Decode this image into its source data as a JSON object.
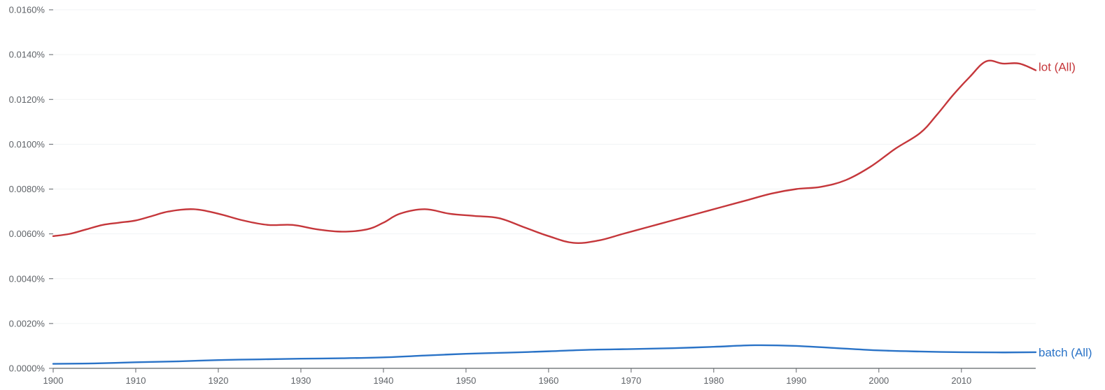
{
  "chart_data": {
    "type": "line",
    "title": "",
    "xlabel": "",
    "ylabel": "",
    "xlim": [
      1900,
      2019
    ],
    "ylim": [
      0,
      0.016
    ],
    "x_ticks": [
      1900,
      1910,
      1920,
      1930,
      1940,
      1950,
      1960,
      1970,
      1980,
      1990,
      2000,
      2010
    ],
    "y_ticks": [
      0,
      0.002,
      0.004,
      0.006,
      0.008,
      0.01,
      0.012,
      0.014,
      0.016
    ],
    "y_tick_labels": [
      "0.0000%",
      "0.0020%",
      "0.0040%",
      "0.0060%",
      "0.0080%",
      "0.0100%",
      "0.0120%",
      "0.0140%",
      "0.0160%"
    ],
    "x_tick_labels": [
      "1900",
      "1910",
      "1920",
      "1930",
      "1940",
      "1950",
      "1960",
      "1970",
      "1980",
      "1990",
      "2000",
      "2010"
    ],
    "grid": true,
    "legend": "inline-right",
    "series": [
      {
        "name": "lot (All)",
        "color": "#c5373b",
        "points": [
          [
            1900,
            0.0059
          ],
          [
            1902,
            0.006
          ],
          [
            1904,
            0.0062
          ],
          [
            1906,
            0.0064
          ],
          [
            1908,
            0.0065
          ],
          [
            1910,
            0.0066
          ],
          [
            1912,
            0.0068
          ],
          [
            1914,
            0.007
          ],
          [
            1917,
            0.0071
          ],
          [
            1920,
            0.0069
          ],
          [
            1923,
            0.0066
          ],
          [
            1926,
            0.0064
          ],
          [
            1929,
            0.0064
          ],
          [
            1932,
            0.0062
          ],
          [
            1935,
            0.0061
          ],
          [
            1938,
            0.0062
          ],
          [
            1940,
            0.0065
          ],
          [
            1942,
            0.0069
          ],
          [
            1945,
            0.0071
          ],
          [
            1948,
            0.0069
          ],
          [
            1951,
            0.0068
          ],
          [
            1954,
            0.0067
          ],
          [
            1957,
            0.0063
          ],
          [
            1960,
            0.0059
          ],
          [
            1963,
            0.0056
          ],
          [
            1966,
            0.0057
          ],
          [
            1969,
            0.006
          ],
          [
            1972,
            0.0063
          ],
          [
            1975,
            0.0066
          ],
          [
            1978,
            0.0069
          ],
          [
            1981,
            0.0072
          ],
          [
            1984,
            0.0075
          ],
          [
            1987,
            0.0078
          ],
          [
            1990,
            0.008
          ],
          [
            1993,
            0.0081
          ],
          [
            1996,
            0.0084
          ],
          [
            1999,
            0.009
          ],
          [
            2002,
            0.0098
          ],
          [
            2005,
            0.0105
          ],
          [
            2007,
            0.0113
          ],
          [
            2009,
            0.0122
          ],
          [
            2011,
            0.013
          ],
          [
            2013,
            0.0137
          ],
          [
            2015,
            0.0136
          ],
          [
            2017,
            0.0136
          ],
          [
            2019,
            0.0133
          ]
        ]
      },
      {
        "name": "batch (All)",
        "color": "#2a73c7",
        "points": [
          [
            1900,
            0.0002
          ],
          [
            1905,
            0.00022
          ],
          [
            1910,
            0.00027
          ],
          [
            1915,
            0.00031
          ],
          [
            1920,
            0.00037
          ],
          [
            1925,
            0.0004
          ],
          [
            1930,
            0.00043
          ],
          [
            1935,
            0.00045
          ],
          [
            1940,
            0.00049
          ],
          [
            1945,
            0.00057
          ],
          [
            1950,
            0.00065
          ],
          [
            1955,
            0.0007
          ],
          [
            1960,
            0.00076
          ],
          [
            1965,
            0.00083
          ],
          [
            1970,
            0.00086
          ],
          [
            1975,
            0.0009
          ],
          [
            1980,
            0.00096
          ],
          [
            1985,
            0.00103
          ],
          [
            1990,
            0.001
          ],
          [
            1995,
            0.0009
          ],
          [
            2000,
            0.0008
          ],
          [
            2005,
            0.00075
          ],
          [
            2010,
            0.00072
          ],
          [
            2015,
            0.00071
          ],
          [
            2019,
            0.00072
          ]
        ]
      }
    ]
  }
}
